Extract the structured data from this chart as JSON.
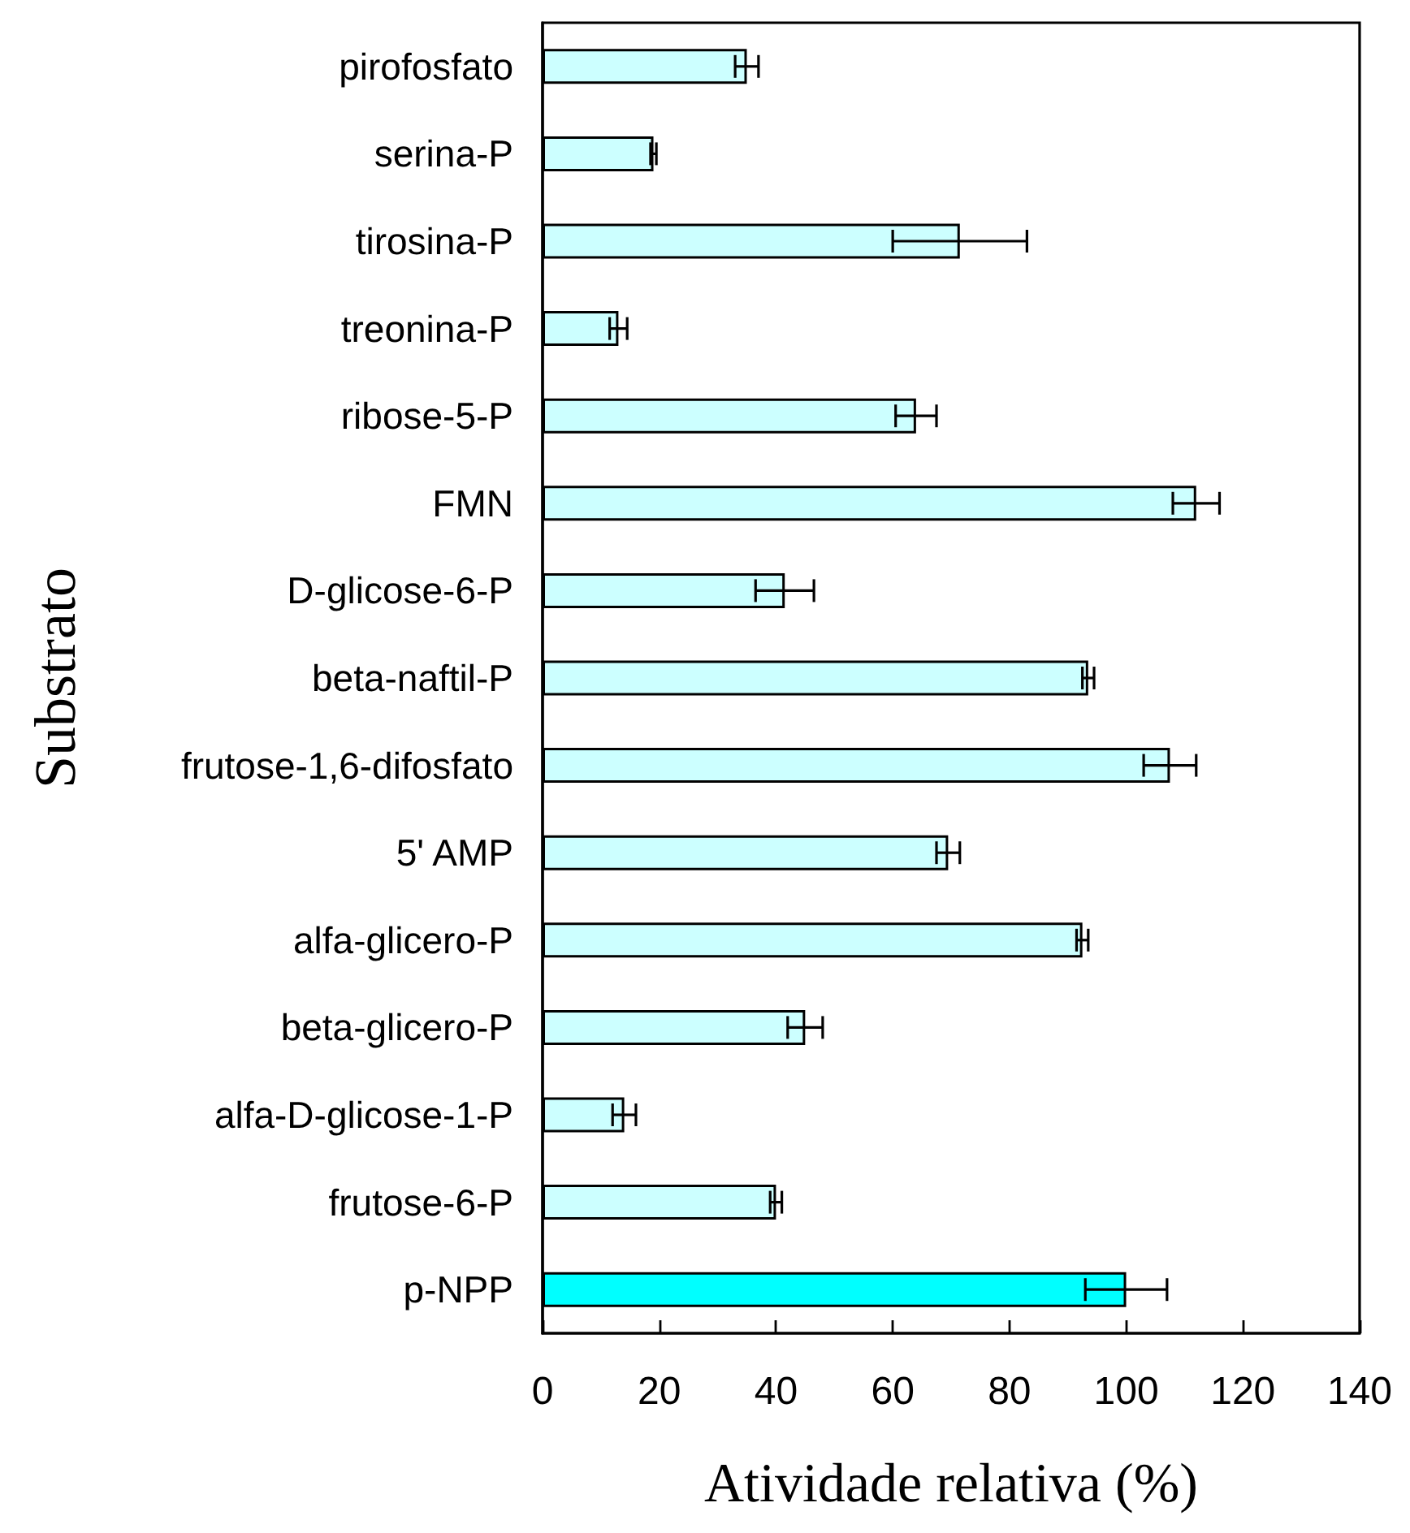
{
  "chart_data": {
    "type": "bar",
    "orientation": "horizontal",
    "xlabel": "Atividade relativa (%)",
    "ylabel": "Substrato",
    "categories": [
      "pirofosfato",
      "serina-P",
      "tirosina-P",
      "treonina-P",
      "ribose-5-P",
      "FMN",
      "D-glicose-6-P",
      "beta-naftil-P",
      "frutose-1,6-difosfato",
      "5' AMP",
      "alfa-glicero-P",
      "beta-glicero-P",
      "alfa-D-glicose-1-P",
      "frutose-6-P",
      "p-NPP"
    ],
    "values": [
      35,
      19,
      71.5,
      13,
      64,
      112,
      41.5,
      93.5,
      107.5,
      69.5,
      92.5,
      45,
      14,
      40,
      100
    ],
    "errors": [
      2,
      0.5,
      11.5,
      1.5,
      3.5,
      4,
      5,
      1,
      4.5,
      2,
      1,
      3,
      2,
      1,
      7
    ],
    "colors": [
      "#ccffff",
      "#ccffff",
      "#ccffff",
      "#ccffff",
      "#ccffff",
      "#ccffff",
      "#ccffff",
      "#ccffff",
      "#ccffff",
      "#ccffff",
      "#ccffff",
      "#ccffff",
      "#ccffff",
      "#ccffff",
      "#00ffff"
    ],
    "xlim": [
      0,
      140
    ],
    "xticks": [
      0,
      20,
      40,
      60,
      80,
      100,
      120,
      140
    ]
  }
}
